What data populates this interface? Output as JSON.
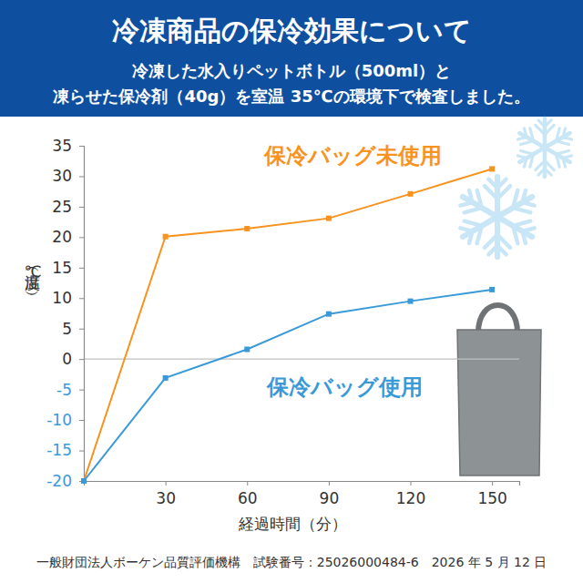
{
  "chart_data": {
    "type": "line",
    "title": "冷凍商品の保冷効果について",
    "subtitle": [
      "冷凍した水入りペットボトル（500ml）と",
      "凍らせた保冷剤（40g）を室温 35℃の環境下で検査しました。"
    ],
    "x_label": "経過時間（分）",
    "y_label": "温度（℃）",
    "source": "一般財団法人ボーケン品質評価機構　試験番号：25026000484-6　2026 年 5 月 12 日",
    "x": [
      0,
      30,
      60,
      90,
      120,
      150
    ],
    "series": [
      {
        "name": "保冷バッグ未使用",
        "color": "#f7931e",
        "marker": "square",
        "values": [
          -20,
          20.1,
          21.4,
          23.1,
          27.1,
          31.2
        ]
      },
      {
        "name": "保冷バッグ使用",
        "color": "#3a9ad9",
        "marker": "square",
        "values": [
          -20,
          -3.1,
          1.6,
          7.4,
          9.5,
          11.4
        ]
      }
    ],
    "xlim": [
      0,
      160
    ],
    "xticks": [
      30,
      60,
      90,
      120,
      150
    ],
    "ylim": [
      -20,
      35
    ],
    "yticks": [
      -20,
      -15,
      -10,
      -5,
      0,
      5,
      10,
      15,
      20,
      25,
      30,
      35
    ]
  }
}
